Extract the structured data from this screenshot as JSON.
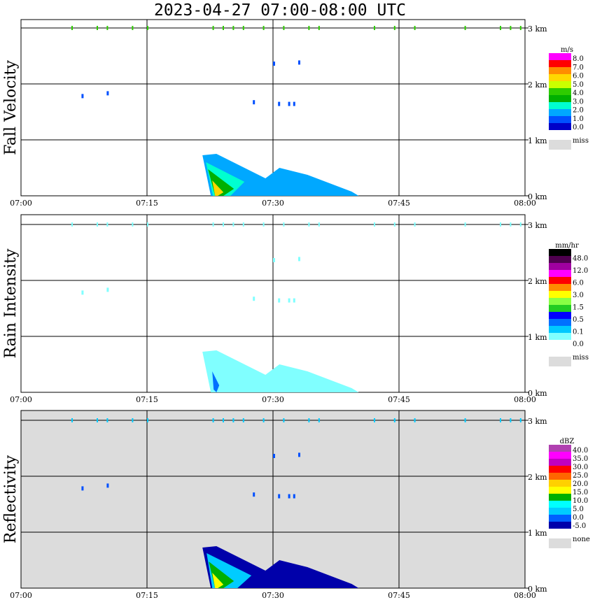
{
  "title": "2023-04-27  07:00-08:00 UTC",
  "chart_data": [
    {
      "type": "heatmap",
      "ylabel": "Fall Velocity",
      "legend_unit": "m/s",
      "legend_labels": [
        "8.0",
        "7.0",
        "6.0",
        "5.0",
        "4.0",
        "3.0",
        "2.0",
        "1.0",
        "0.0"
      ],
      "legend_colors": [
        "#ff00ff",
        "#ff0000",
        "#ff8c00",
        "#ffd700",
        "#ccff00",
        "#2ecc00",
        "#00b000",
        "#00ffd0",
        "#00a8ff",
        "#0050ff",
        "#0000c8"
      ],
      "missing_label": "miss",
      "background": "#ffffff",
      "ylim_km": [
        0,
        3
      ],
      "yticks": [
        "0 km",
        "1 km",
        "2 km",
        "3 km"
      ],
      "xticks": [
        "07:00",
        "07:15",
        "07:30",
        "07:45",
        "08:00"
      ]
    },
    {
      "type": "heatmap",
      "ylabel": "Rain Intensity",
      "legend_unit": "mm/hr",
      "legend_labels": [
        "48.0",
        "12.0",
        "6.0",
        "3.0",
        "1.5",
        "0.5",
        "0.1",
        "0.0"
      ],
      "legend_colors": [
        "#000000",
        "#500050",
        "#a000a0",
        "#ff00ff",
        "#ff0000",
        "#ff8c00",
        "#ffff00",
        "#88ff44",
        "#22cc22",
        "#0000ff",
        "#0070ff",
        "#00c8ff",
        "#80ffff",
        "#ffffff"
      ],
      "missing_label": "miss",
      "background": "#ffffff",
      "ylim_km": [
        0,
        3
      ],
      "yticks": [
        "0 km",
        "1 km",
        "2 km",
        "3 km"
      ],
      "xticks": [
        "07:00",
        "07:15",
        "07:30",
        "07:45",
        "08:00"
      ]
    },
    {
      "type": "heatmap",
      "ylabel": "Reflectivity",
      "legend_unit": "dBZ",
      "legend_labels": [
        "40.0",
        "35.0",
        "30.0",
        "25.0",
        "20.0",
        "15.0",
        "10.0",
        "5.0",
        "0.0",
        "-5.0"
      ],
      "legend_colors": [
        "#b040b0",
        "#ff00ff",
        "#c000c0",
        "#ff0000",
        "#ff6600",
        "#ffd000",
        "#ffff00",
        "#00b000",
        "#00ffff",
        "#00ccff",
        "#0060ff",
        "#0000aa"
      ],
      "missing_label": "none",
      "background": "#dcdcdc",
      "ylim_km": [
        0,
        3
      ],
      "yticks": [
        "0 km",
        "1 km",
        "2 km",
        "3 km"
      ],
      "xticks": [
        "07:00",
        "07:15",
        "07:30",
        "07:45",
        "08:00"
      ]
    }
  ],
  "colors": {
    "missing": "#dcdcdc",
    "grid": "#000000"
  }
}
